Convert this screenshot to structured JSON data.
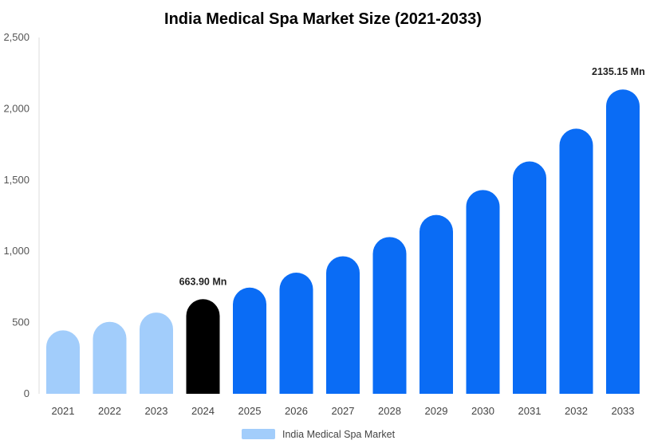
{
  "chart_data": {
    "type": "bar",
    "title": "India Medical Spa Market Size (2021-2033)",
    "xlabel": "",
    "ylabel": "",
    "categories": [
      "2021",
      "2022",
      "2023",
      "2024",
      "2025",
      "2026",
      "2027",
      "2028",
      "2029",
      "2030",
      "2031",
      "2032",
      "2033"
    ],
    "series": [
      {
        "name": "India Medical Spa Market",
        "values": [
          445,
          505,
          570,
          663.9,
          745,
          850,
          965,
          1100,
          1255,
          1430,
          1630,
          1860,
          2135.15
        ]
      }
    ],
    "ylim": [
      0,
      2500
    ],
    "yticks": [
      {
        "value": 0,
        "label": "0"
      },
      {
        "value": 500,
        "label": "500"
      },
      {
        "value": 1000,
        "label": "1,000"
      },
      {
        "value": 1500,
        "label": "1,500"
      },
      {
        "value": 2000,
        "label": "2,000"
      },
      {
        "value": 2500,
        "label": "2,500"
      }
    ],
    "data_labels": [
      {
        "index": 3,
        "text": "663.90 Mn"
      },
      {
        "index": 12,
        "text": "2135.15 Mn"
      }
    ],
    "bar_colors": {
      "historical": "#a2cdfb",
      "base_year": "#000000",
      "forecast": "#0a6cf5"
    },
    "historical_count": 3,
    "base_year_index": 3,
    "legend": {
      "position": "bottom-center",
      "label": "India Medical Spa Market",
      "color": "#a2cdfb"
    },
    "grid": false
  }
}
